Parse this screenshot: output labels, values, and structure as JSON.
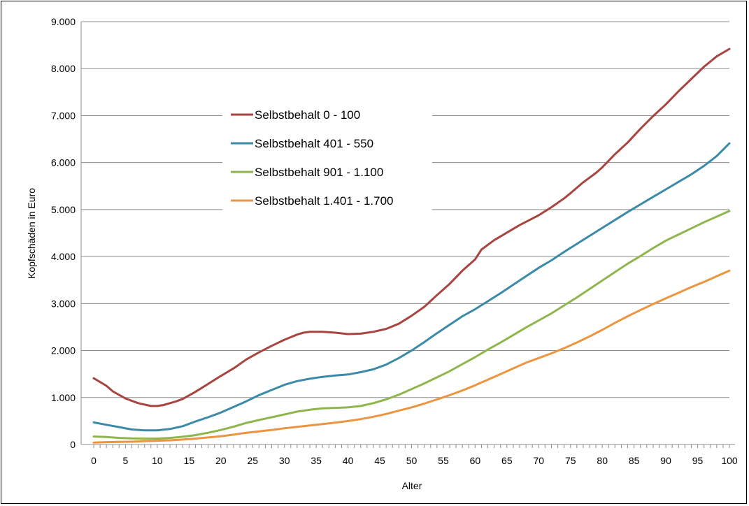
{
  "chart_data": {
    "type": "line",
    "title": "",
    "xlabel": "Alter",
    "ylabel": "Kopfschäden in Euro",
    "xlim": [
      0,
      100
    ],
    "ylim": [
      0,
      9000
    ],
    "x_ticks": [
      0,
      5,
      10,
      15,
      20,
      25,
      30,
      35,
      40,
      45,
      50,
      55,
      60,
      65,
      70,
      75,
      80,
      85,
      90,
      95,
      100
    ],
    "y_ticks": [
      0,
      1000,
      2000,
      3000,
      4000,
      5000,
      6000,
      7000,
      8000,
      9000
    ],
    "y_tick_labels": [
      "0",
      "1.000",
      "2.000",
      "3.000",
      "4.000",
      "5.000",
      "6.000",
      "7.000",
      "8.000",
      "9.000"
    ],
    "grid": "horizontal",
    "legend_position": "inside-left",
    "series": [
      {
        "name": "Selbstbehalt 0 - 100",
        "color": "#a84541",
        "points": [
          [
            0,
            1410
          ],
          [
            2,
            1250
          ],
          [
            3,
            1130
          ],
          [
            5,
            980
          ],
          [
            7,
            880
          ],
          [
            9,
            820
          ],
          [
            10,
            820
          ],
          [
            11,
            840
          ],
          [
            13,
            920
          ],
          [
            14,
            970
          ],
          [
            16,
            1120
          ],
          [
            18,
            1290
          ],
          [
            20,
            1460
          ],
          [
            22,
            1620
          ],
          [
            24,
            1810
          ],
          [
            26,
            1960
          ],
          [
            28,
            2100
          ],
          [
            30,
            2230
          ],
          [
            32,
            2340
          ],
          [
            33,
            2380
          ],
          [
            34,
            2400
          ],
          [
            36,
            2400
          ],
          [
            38,
            2380
          ],
          [
            40,
            2350
          ],
          [
            42,
            2360
          ],
          [
            44,
            2400
          ],
          [
            46,
            2460
          ],
          [
            48,
            2570
          ],
          [
            50,
            2740
          ],
          [
            52,
            2930
          ],
          [
            54,
            3180
          ],
          [
            56,
            3420
          ],
          [
            58,
            3700
          ],
          [
            60,
            3940
          ],
          [
            61,
            4150
          ],
          [
            63,
            4350
          ],
          [
            65,
            4510
          ],
          [
            67,
            4670
          ],
          [
            70,
            4880
          ],
          [
            72,
            5050
          ],
          [
            74,
            5240
          ],
          [
            75,
            5350
          ],
          [
            77,
            5580
          ],
          [
            79,
            5780
          ],
          [
            80,
            5900
          ],
          [
            82,
            6180
          ],
          [
            84,
            6430
          ],
          [
            86,
            6720
          ],
          [
            88,
            6990
          ],
          [
            90,
            7240
          ],
          [
            92,
            7520
          ],
          [
            94,
            7780
          ],
          [
            96,
            8040
          ],
          [
            98,
            8260
          ],
          [
            100,
            8420
          ]
        ]
      },
      {
        "name": "Selbstbehalt 401 - 550",
        "color": "#3a8aa8",
        "points": [
          [
            0,
            470
          ],
          [
            2,
            420
          ],
          [
            4,
            370
          ],
          [
            6,
            320
          ],
          [
            8,
            300
          ],
          [
            10,
            300
          ],
          [
            12,
            330
          ],
          [
            14,
            390
          ],
          [
            16,
            490
          ],
          [
            18,
            580
          ],
          [
            20,
            680
          ],
          [
            22,
            800
          ],
          [
            24,
            920
          ],
          [
            26,
            1050
          ],
          [
            28,
            1160
          ],
          [
            30,
            1270
          ],
          [
            32,
            1350
          ],
          [
            34,
            1400
          ],
          [
            36,
            1440
          ],
          [
            38,
            1470
          ],
          [
            40,
            1490
          ],
          [
            42,
            1540
          ],
          [
            44,
            1600
          ],
          [
            46,
            1700
          ],
          [
            48,
            1840
          ],
          [
            50,
            2000
          ],
          [
            52,
            2180
          ],
          [
            54,
            2370
          ],
          [
            56,
            2550
          ],
          [
            58,
            2730
          ],
          [
            60,
            2880
          ],
          [
            62,
            3050
          ],
          [
            64,
            3220
          ],
          [
            66,
            3400
          ],
          [
            68,
            3580
          ],
          [
            70,
            3760
          ],
          [
            72,
            3920
          ],
          [
            74,
            4100
          ],
          [
            76,
            4270
          ],
          [
            78,
            4440
          ],
          [
            80,
            4610
          ],
          [
            82,
            4780
          ],
          [
            84,
            4950
          ],
          [
            86,
            5110
          ],
          [
            88,
            5270
          ],
          [
            90,
            5430
          ],
          [
            92,
            5590
          ],
          [
            94,
            5750
          ],
          [
            96,
            5930
          ],
          [
            98,
            6140
          ],
          [
            100,
            6410
          ]
        ]
      },
      {
        "name": "Selbstbehalt 901 - 1.100",
        "color": "#8fb64d",
        "points": [
          [
            0,
            170
          ],
          [
            2,
            160
          ],
          [
            4,
            140
          ],
          [
            6,
            130
          ],
          [
            8,
            125
          ],
          [
            10,
            125
          ],
          [
            12,
            140
          ],
          [
            14,
            165
          ],
          [
            16,
            200
          ],
          [
            18,
            250
          ],
          [
            20,
            310
          ],
          [
            22,
            380
          ],
          [
            24,
            460
          ],
          [
            26,
            520
          ],
          [
            28,
            580
          ],
          [
            30,
            640
          ],
          [
            32,
            700
          ],
          [
            34,
            740
          ],
          [
            36,
            770
          ],
          [
            38,
            780
          ],
          [
            40,
            790
          ],
          [
            42,
            820
          ],
          [
            44,
            880
          ],
          [
            46,
            960
          ],
          [
            48,
            1060
          ],
          [
            50,
            1180
          ],
          [
            52,
            1300
          ],
          [
            54,
            1430
          ],
          [
            56,
            1560
          ],
          [
            58,
            1710
          ],
          [
            60,
            1860
          ],
          [
            62,
            2020
          ],
          [
            64,
            2170
          ],
          [
            66,
            2330
          ],
          [
            68,
            2490
          ],
          [
            70,
            2640
          ],
          [
            72,
            2790
          ],
          [
            74,
            2960
          ],
          [
            76,
            3130
          ],
          [
            78,
            3310
          ],
          [
            80,
            3490
          ],
          [
            82,
            3670
          ],
          [
            84,
            3850
          ],
          [
            86,
            4010
          ],
          [
            88,
            4180
          ],
          [
            90,
            4340
          ],
          [
            92,
            4470
          ],
          [
            94,
            4600
          ],
          [
            96,
            4730
          ],
          [
            98,
            4850
          ],
          [
            100,
            4970
          ]
        ]
      },
      {
        "name": "Selbstbehalt 1.401 - 1.700",
        "color": "#ec9540",
        "points": [
          [
            0,
            40
          ],
          [
            2,
            50
          ],
          [
            4,
            55
          ],
          [
            6,
            60
          ],
          [
            8,
            70
          ],
          [
            10,
            80
          ],
          [
            12,
            90
          ],
          [
            14,
            105
          ],
          [
            16,
            125
          ],
          [
            18,
            150
          ],
          [
            20,
            175
          ],
          [
            22,
            210
          ],
          [
            24,
            250
          ],
          [
            26,
            280
          ],
          [
            28,
            310
          ],
          [
            30,
            345
          ],
          [
            32,
            375
          ],
          [
            34,
            405
          ],
          [
            36,
            435
          ],
          [
            38,
            465
          ],
          [
            40,
            500
          ],
          [
            42,
            540
          ],
          [
            44,
            590
          ],
          [
            46,
            650
          ],
          [
            48,
            720
          ],
          [
            50,
            790
          ],
          [
            52,
            870
          ],
          [
            54,
            960
          ],
          [
            56,
            1050
          ],
          [
            58,
            1150
          ],
          [
            60,
            1260
          ],
          [
            62,
            1380
          ],
          [
            64,
            1500
          ],
          [
            66,
            1620
          ],
          [
            68,
            1740
          ],
          [
            70,
            1840
          ],
          [
            72,
            1940
          ],
          [
            74,
            2050
          ],
          [
            76,
            2170
          ],
          [
            78,
            2300
          ],
          [
            80,
            2440
          ],
          [
            82,
            2590
          ],
          [
            84,
            2730
          ],
          [
            86,
            2860
          ],
          [
            88,
            2990
          ],
          [
            90,
            3110
          ],
          [
            92,
            3230
          ],
          [
            94,
            3350
          ],
          [
            96,
            3460
          ],
          [
            98,
            3580
          ],
          [
            100,
            3700
          ]
        ]
      }
    ]
  }
}
